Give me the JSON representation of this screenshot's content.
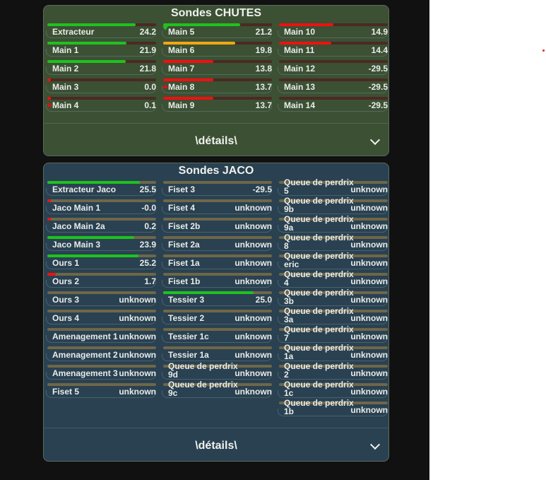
{
  "colors": {
    "page_dark": "#111111",
    "chutes_card": "#3c5034",
    "jaco_card": "#2a4151",
    "green": "#1ec21e",
    "orange": "#f2a613",
    "red": "#f01010",
    "track_chutes": "#4a2a22",
    "track_unknown": "#6e6748"
  },
  "cards": [
    {
      "id": "chutes",
      "title": "Sondes CHUTES",
      "footer_label": "\\détails\\",
      "columns": [
        [
          {
            "name": "Extracteur",
            "value": "24.2",
            "level": 0.81,
            "color": "green"
          },
          {
            "name": "Main 1",
            "value": "21.9",
            "level": 0.73,
            "color": "green"
          },
          {
            "name": "Main 2",
            "value": "21.8",
            "level": 0.72,
            "color": "green"
          },
          {
            "name": "Main 3",
            "value": "0.0",
            "level": 0.03,
            "color": "red"
          },
          {
            "name": "Main 4",
            "value": "0.1",
            "level": 0.03,
            "color": "red",
            "marker": "up"
          }
        ],
        [
          {
            "name": "Main 5",
            "value": "21.2",
            "level": 0.71,
            "color": "green",
            "marker": "down"
          },
          {
            "name": "Main 6",
            "value": "19.8",
            "level": 0.66,
            "color": "orange"
          },
          {
            "name": "Main 7",
            "value": "13.8",
            "level": 0.46,
            "color": "red"
          },
          {
            "name": "Main 8",
            "value": "13.7",
            "level": 0.46,
            "color": "red",
            "marker": "up"
          },
          {
            "name": "Main 9",
            "value": "13.7",
            "level": 0.46,
            "color": "red"
          }
        ],
        [
          {
            "name": "Main 10",
            "value": "14.9",
            "level": 0.5,
            "color": "red"
          },
          {
            "name": "Main 11",
            "value": "14.4",
            "level": 0.48,
            "color": "red"
          },
          {
            "name": "Main 12",
            "value": "-29.5",
            "level": 0,
            "color": "red"
          },
          {
            "name": "Main 13",
            "value": "-29.5",
            "level": 0,
            "color": "red"
          },
          {
            "name": "Main 14",
            "value": "-29.5",
            "level": 0,
            "color": "red"
          }
        ]
      ]
    },
    {
      "id": "jaco",
      "title": "Sondes JACO",
      "footer_label": "\\détails\\",
      "columns": [
        [
          {
            "name": "Extracteur Jaco",
            "value": "25.5",
            "level": 0.85,
            "color": "green"
          },
          {
            "name": "Jaco Main 1",
            "value": "-0.0",
            "level": 0.03,
            "color": "red"
          },
          {
            "name": "Jaco Main 2a",
            "value": "0.2",
            "level": 0.03,
            "color": "red"
          },
          {
            "name": "Jaco Main 3",
            "value": "23.9",
            "level": 0.8,
            "color": "green"
          },
          {
            "name": "Ours 1",
            "value": "25.2",
            "level": 0.84,
            "color": "green"
          },
          {
            "name": "Ours 2",
            "value": "1.7",
            "level": 0.08,
            "color": "red"
          },
          {
            "name": "Ours 3",
            "value": "unknown",
            "level": 0,
            "color": "unknown"
          },
          {
            "name": "Ours 4",
            "value": "unknown",
            "level": 0,
            "color": "unknown"
          },
          {
            "name": "Amenagement 1",
            "value": "unknown",
            "level": 0,
            "color": "unknown"
          },
          {
            "name": "Amenagement 2",
            "value": "unknown",
            "level": 0,
            "color": "unknown"
          },
          {
            "name": "Amenagement 3",
            "value": "unknown",
            "level": 0,
            "color": "unknown"
          },
          {
            "name": "Fiset 5",
            "value": "unknown",
            "level": 0,
            "color": "unknown"
          }
        ],
        [
          {
            "name": "Fiset 3",
            "value": "-29.5",
            "level": 0,
            "color": "unknown"
          },
          {
            "name": "Fiset 4",
            "value": "unknown",
            "level": 0,
            "color": "unknown"
          },
          {
            "name": "Fiset 2b",
            "value": "unknown",
            "level": 0,
            "color": "unknown"
          },
          {
            "name": "Fiset 2a",
            "value": "unknown",
            "level": 0,
            "color": "unknown"
          },
          {
            "name": "Fiset 1a",
            "value": "unknown",
            "level": 0,
            "color": "unknown"
          },
          {
            "name": "Fiset 1b",
            "value": "unknown",
            "level": 0,
            "color": "unknown"
          },
          {
            "name": "Tessier 3",
            "value": "25.0",
            "level": 0.83,
            "color": "green"
          },
          {
            "name": "Tessier 2",
            "value": "unknown",
            "level": 0,
            "color": "unknown"
          },
          {
            "name": "Tessier 1c",
            "value": "unknown",
            "level": 0,
            "color": "unknown"
          },
          {
            "name": "Tessier 1a",
            "value": "unknown",
            "level": 0,
            "color": "unknown"
          },
          {
            "name": "Queue de perdrix 9d",
            "value": "unknown",
            "level": 0,
            "color": "unknown"
          },
          {
            "name": "Queue de perdrix 9c",
            "value": "unknown",
            "level": 0,
            "color": "unknown"
          }
        ],
        [
          {
            "name": "Queue de perdrix 5",
            "value": "unknown",
            "level": 0,
            "color": "unknown"
          },
          {
            "name": "Queue de perdrix 9b",
            "value": "unknown",
            "level": 0,
            "color": "unknown"
          },
          {
            "name": "Queue de perdrix 9a",
            "value": "unknown",
            "level": 0,
            "color": "unknown"
          },
          {
            "name": "Queue de perdrix 8",
            "value": "unknown",
            "level": 0,
            "color": "unknown"
          },
          {
            "name": "Queue de perdrix eric",
            "value": "unknown",
            "level": 0,
            "color": "unknown"
          },
          {
            "name": "Queue de perdrix 4",
            "value": "unknown",
            "level": 0,
            "color": "unknown"
          },
          {
            "name": "Queue de perdrix 3b",
            "value": "unknown",
            "level": 0,
            "color": "unknown"
          },
          {
            "name": "Queue de perdrix 3a",
            "value": "unknown",
            "level": 0,
            "color": "unknown"
          },
          {
            "name": "Queue de perdrix 7",
            "value": "unknown",
            "level": 0,
            "color": "unknown"
          },
          {
            "name": "Queue de perdrix 1a",
            "value": "unknown",
            "level": 0,
            "color": "unknown"
          },
          {
            "name": "Queue de perdrix 2",
            "value": "unknown",
            "level": 0,
            "color": "unknown"
          },
          {
            "name": "Queue de perdrix 1c",
            "value": "unknown",
            "level": 0,
            "color": "unknown"
          },
          {
            "name": "Queue de perdrix 1b",
            "value": "unknown",
            "level": 0,
            "color": "unknown"
          }
        ]
      ]
    }
  ]
}
